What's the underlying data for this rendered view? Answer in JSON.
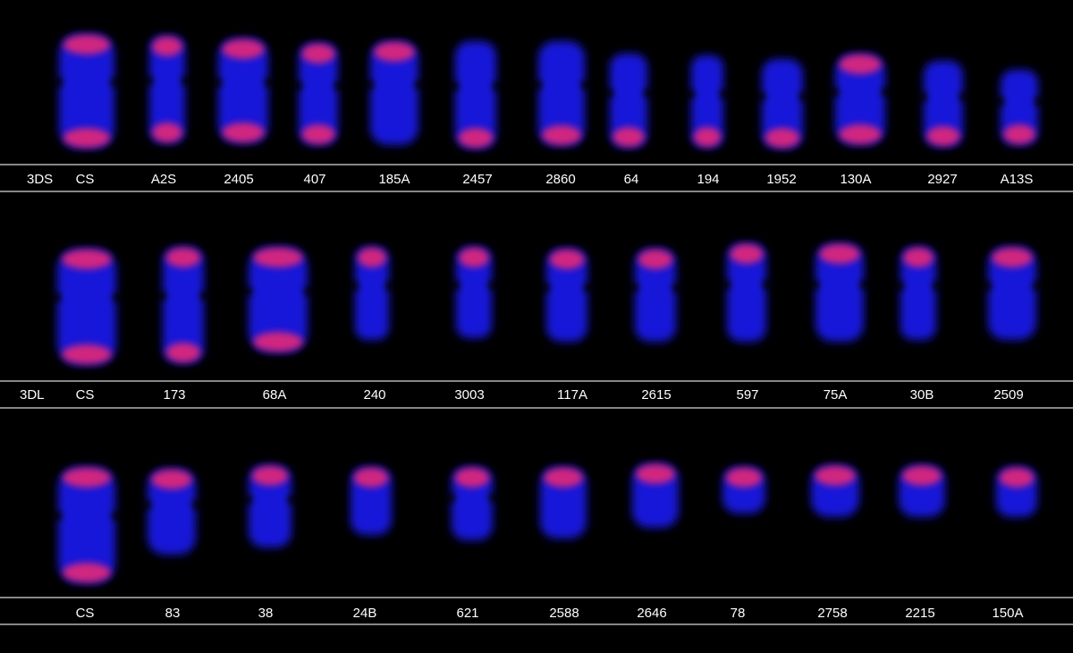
{
  "figure": {
    "colors": {
      "background": "#000000",
      "chromatin": "#1a1aff",
      "signal": "#ff2a6a",
      "divider": "#d8d8d8",
      "text": "#ffffff"
    },
    "panels": [
      {
        "row_label": "3DS",
        "labels": [
          "CS",
          "A2S",
          "2405",
          "407",
          "185A",
          "2457",
          "2860",
          "64",
          "194",
          "1952",
          "130A",
          "2927",
          "A13S"
        ]
      },
      {
        "row_label": "3DL",
        "labels": [
          "CS",
          "173",
          "68A",
          "240",
          "3003",
          "117A",
          "2615",
          "597",
          "75A",
          "30B",
          "2509"
        ]
      },
      {
        "row_label": "",
        "labels": [
          "CS",
          "83",
          "38",
          "24B",
          "621",
          "2588",
          "2646",
          "78",
          "2758",
          "2215",
          "150A"
        ]
      }
    ]
  }
}
